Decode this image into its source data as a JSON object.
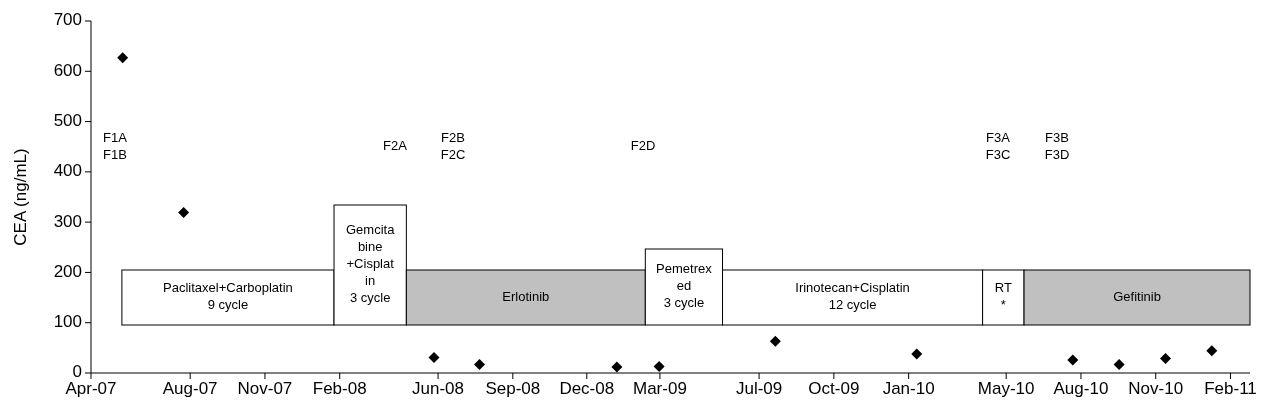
{
  "chart_data": {
    "type": "scatter",
    "ylabel": "CEA (ng/mL)",
    "xlim": [
      "2007-04",
      "2011-02-25"
    ],
    "xticks": [
      {
        "value": "2007-04",
        "label": "Apr-07"
      },
      {
        "value": "2007-08",
        "label": "Aug-07"
      },
      {
        "value": "2007-11",
        "label": "Nov-07"
      },
      {
        "value": "2008-02",
        "label": "Feb-08"
      },
      {
        "value": "2008-06",
        "label": "Jun-08"
      },
      {
        "value": "2008-09",
        "label": "Sep-08"
      },
      {
        "value": "2008-12",
        "label": "Dec-08"
      },
      {
        "value": "2009-03",
        "label": "Mar-09"
      },
      {
        "value": "2009-07",
        "label": "Jul-09"
      },
      {
        "value": "2009-10",
        "label": "Oct-09"
      },
      {
        "value": "2010-01",
        "label": "Jan-10"
      },
      {
        "value": "2010-05",
        "label": "May-10"
      },
      {
        "value": "2010-08",
        "label": "Aug-10"
      },
      {
        "value": "2010-11",
        "label": "Nov-10"
      },
      {
        "value": "2011-02",
        "label": "Feb-11"
      }
    ],
    "ylim": [
      0,
      700
    ],
    "yticks": [
      0,
      100,
      200,
      300,
      400,
      500,
      600,
      700
    ],
    "series": [
      {
        "color": "#000000",
        "x": [
          "2007-05-10",
          "2007-07-24",
          "2008-05-27",
          "2008-07-22",
          "2009-01-07",
          "2009-02-28",
          "2009-07-21",
          "2010-01-11",
          "2010-07-22",
          "2010-09-17",
          "2010-11-13",
          "2011-01-09"
        ],
        "values": [
          627,
          319,
          31,
          17,
          12,
          13,
          63,
          38,
          26,
          17,
          29,
          44
        ]
      }
    ],
    "marker": "diamond",
    "grid": false,
    "bands": [
      {
        "axis": "x",
        "from": "2007-05-09",
        "to": "2008-01-25",
        "label": "Paclitaxel+Carboplatin\n9 cycle",
        "color": "#ffffff"
      },
      {
        "axis": "x",
        "from": "2008-01-25",
        "to": "2008-04-23",
        "label": "Gemcita\nbine\n+Cisplat\nin\n3 cycle",
        "color": "#ffffff"
      },
      {
        "axis": "x",
        "from": "2008-04-23",
        "to": "2009-02-11",
        "label": "Erlotinib",
        "color": "#c0c0c0"
      },
      {
        "axis": "x",
        "from": "2009-02-11",
        "to": "2009-05-17",
        "label": "Pemetrex\ned\n3 cycle",
        "color": "#ffffff"
      },
      {
        "axis": "x",
        "from": "2009-05-17",
        "to": "2010-04-02",
        "label": "Irinotecan+Cisplatin\n12 cycle",
        "color": "#ffffff"
      },
      {
        "axis": "x",
        "from": "2010-04-02",
        "to": "2010-05-23",
        "label": "RT\n*",
        "color": "#ffffff"
      },
      {
        "axis": "x",
        "from": "2010-05-23",
        "to": "2011-02-25",
        "label": "Gefitinib",
        "color": "#c0c0c0"
      }
    ],
    "annotations": [
      "F1A\nF1B",
      "F2A",
      "F2B\nF2C",
      "F2D",
      "F3A\nF3C",
      "F3B\nF3D"
    ]
  }
}
